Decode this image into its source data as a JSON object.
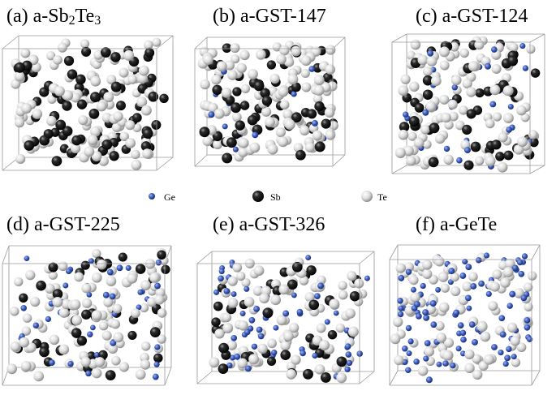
{
  "panels": [
    {
      "id": "a",
      "prefix": "(a) a-Sb",
      "sub1": "2",
      "mid": "Te",
      "sub2": "3",
      "composition": {
        "ge": 0,
        "sb": 2,
        "te": 3
      }
    },
    {
      "id": "b",
      "title": "(b) a-GST-147",
      "composition": {
        "ge": 1,
        "sb": 4,
        "te": 7
      }
    },
    {
      "id": "c",
      "title": "(c) a-GST-124",
      "composition": {
        "ge": 1,
        "sb": 2,
        "te": 4
      }
    },
    {
      "id": "d",
      "title": "(d) a-GST-225",
      "composition": {
        "ge": 2,
        "sb": 2,
        "te": 5
      }
    },
    {
      "id": "e",
      "title": "(e) a-GST-326",
      "composition": {
        "ge": 3,
        "sb": 2,
        "te": 6
      }
    },
    {
      "id": "f",
      "title": "(f) a-GeTe",
      "composition": {
        "ge": 1,
        "sb": 0,
        "te": 1
      }
    }
  ],
  "legend": [
    {
      "key": "ge",
      "label": "Ge"
    },
    {
      "key": "sb",
      "label": "Sb"
    },
    {
      "key": "te",
      "label": "Te"
    }
  ],
  "colors": {
    "ge": "#3a5bbf",
    "sb": "#1a1a1a",
    "te": "#d9d9d9",
    "box_edge": "#9a9a9a"
  }
}
